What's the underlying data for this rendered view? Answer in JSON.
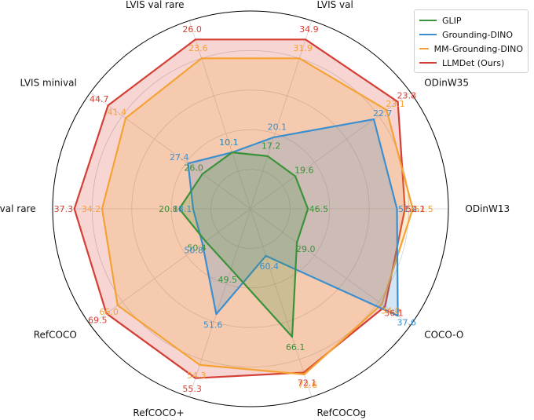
{
  "chart_data": {
    "type": "radar",
    "axes": [
      "ODinW13",
      "ODinW35",
      "LVIS val",
      "LVIS val rare",
      "LVIS minival",
      "LVIS minival rare",
      "RefCOCO",
      "RefCOCO+",
      "RefCOCOg",
      "COCO-O"
    ],
    "series": [
      {
        "name": "GLIP",
        "color": "#3a923a",
        "values": [
          46.5,
          19.6,
          17.2,
          10.1,
          26.0,
          20.8,
          50.4,
          49.5,
          66.1,
          29.0
        ],
        "labels": [
          "46.5",
          "19.6",
          "17.2",
          "10.1",
          "26.0",
          "20.8",
          "50.4",
          "49.5",
          "66.1",
          "29.0"
        ],
        "radius": [
          0.29,
          0.28,
          0.28,
          0.3,
          0.3,
          0.36,
          0.28,
          0.32,
          0.68,
          0.29
        ]
      },
      {
        "name": "Grounding-DINO",
        "color": "#3c8fce",
        "values": [
          51.4,
          22.7,
          20.1,
          10.1,
          27.4,
          18.1,
          50.8,
          51.6,
          60.4,
          37.6
        ],
        "labels": [
          "51.4",
          "22.7",
          "20.1",
          "10.1",
          "27.4",
          "18.1",
          "50.8",
          "51.6",
          "60.4",
          "37.6"
        ],
        "radius": [
          0.74,
          0.77,
          0.38,
          0.3,
          0.39,
          0.29,
          0.3,
          0.56,
          0.25,
          0.92
        ]
      },
      {
        "name": "MM-Grounding-DINO",
        "color": "#f5a234",
        "values": [
          52.5,
          23.1,
          31.9,
          23.6,
          41.4,
          34.2,
          66.0,
          54.3,
          72.6,
          34.0
        ],
        "labels": [
          "52.5",
          "23.1",
          "31.9",
          "23.6",
          "41.4",
          "34.2",
          "66.0",
          "54.3",
          "72.6",
          "34.0"
        ],
        "radius": [
          0.82,
          0.85,
          0.8,
          0.8,
          0.78,
          0.75,
          0.83,
          0.83,
          0.88,
          0.82
        ]
      },
      {
        "name": "LLMDet (Ours)",
        "color": "#d43f35",
        "values": [
          52.1,
          23.8,
          34.9,
          26.0,
          44.7,
          37.3,
          69.5,
          55.3,
          72.1,
          36.1
        ],
        "labels": [
          "52.1",
          "23.8",
          "34.9",
          "26.0",
          "44.7",
          "37.3",
          "69.5",
          "55.3",
          "72.1",
          "36.1"
        ],
        "radius": [
          0.78,
          0.92,
          0.9,
          0.9,
          0.89,
          0.89,
          0.9,
          0.9,
          0.87,
          0.84
        ]
      }
    ],
    "grid": true,
    "legend": "top-right"
  }
}
